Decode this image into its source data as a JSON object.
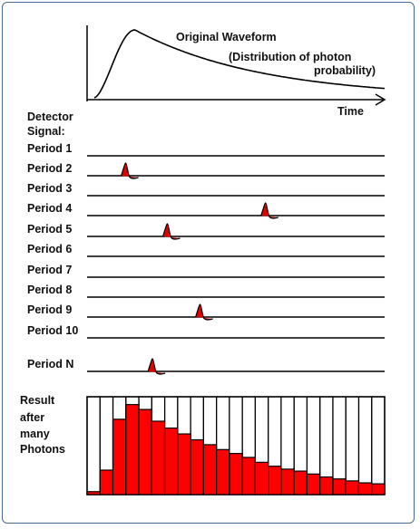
{
  "waveform": {
    "title": "Original Waveform",
    "subtitle_line1": "(Distribution of photon",
    "subtitle_line2": "probability)",
    "axis_label": "Time"
  },
  "detector_label_line1": "Detector",
  "detector_label_line2": "Signal:",
  "periods": [
    {
      "label": "Period 1",
      "pulse_time": null
    },
    {
      "label": "Period 2",
      "pulse_time": 0.13
    },
    {
      "label": "Period 3",
      "pulse_time": null
    },
    {
      "label": "Period 4",
      "pulse_time": 0.6
    },
    {
      "label": "Period 5",
      "pulse_time": 0.27
    },
    {
      "label": "Period 6",
      "pulse_time": null
    },
    {
      "label": "Period 7",
      "pulse_time": null
    },
    {
      "label": "Period 8",
      "pulse_time": null
    },
    {
      "label": "Period 9",
      "pulse_time": 0.38
    },
    {
      "label": "Period 10",
      "pulse_time": null
    },
    {
      "label": "Period N",
      "pulse_time": 0.22
    }
  ],
  "result": {
    "label_lines": [
      "Result",
      "after",
      "many",
      "Photons"
    ],
    "histogram": [
      0.03,
      0.25,
      0.77,
      0.92,
      0.87,
      0.75,
      0.68,
      0.62,
      0.56,
      0.51,
      0.46,
      0.42,
      0.38,
      0.33,
      0.29,
      0.26,
      0.24,
      0.21,
      0.18,
      0.16,
      0.14,
      0.12,
      0.11
    ]
  },
  "colors": {
    "pulse": "#e00000",
    "bar_fill": "#ff0000",
    "line": "#000000",
    "frame": "#4a6a9a"
  }
}
